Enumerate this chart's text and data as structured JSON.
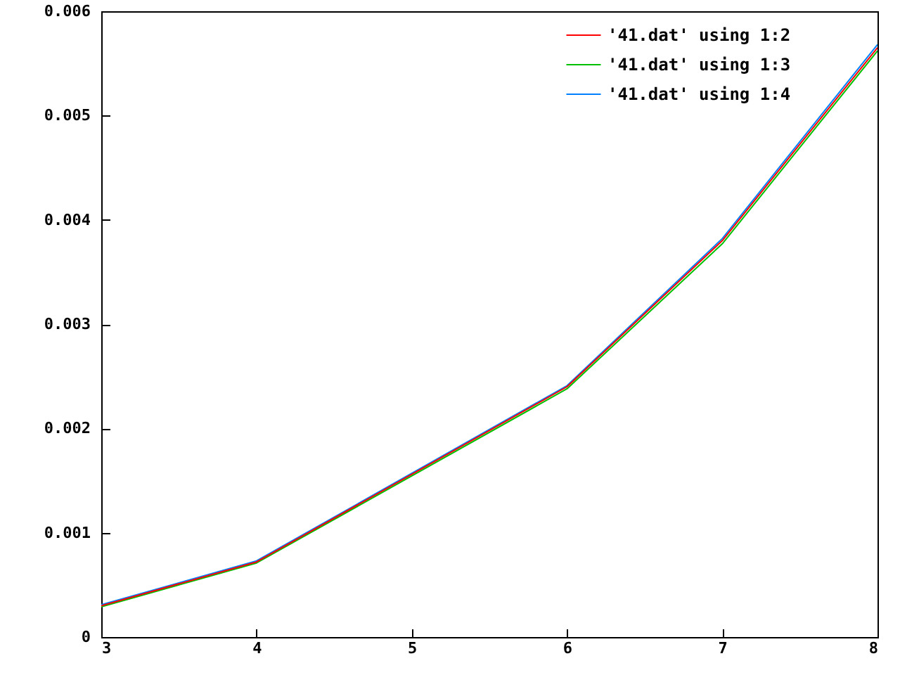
{
  "chart_data": {
    "type": "line",
    "x": [
      3,
      4,
      6,
      7,
      8
    ],
    "series": [
      {
        "name": "'41.dat' using 1:2",
        "color": "#ff0000",
        "values": [
          0.0003,
          0.00072,
          0.0024,
          0.0038,
          0.00565
        ]
      },
      {
        "name": "'41.dat' using 1:3",
        "color": "#00c000",
        "values": [
          0.00029,
          0.00071,
          0.00238,
          0.00377,
          0.00562
        ]
      },
      {
        "name": "'41.dat' using 1:4",
        "color": "#0080ff",
        "values": [
          0.00031,
          0.00073,
          0.00241,
          0.00382,
          0.00568
        ]
      }
    ],
    "xlim": [
      3,
      8
    ],
    "xticks": [
      3,
      4,
      5,
      6,
      7,
      8
    ],
    "ylim": [
      0,
      0.006
    ],
    "yticks": [
      0,
      0.001,
      0.002,
      0.003,
      0.004,
      0.005,
      0.006
    ],
    "grid": false,
    "legend": "top right",
    "marker": "none",
    "line_style": "solid"
  }
}
